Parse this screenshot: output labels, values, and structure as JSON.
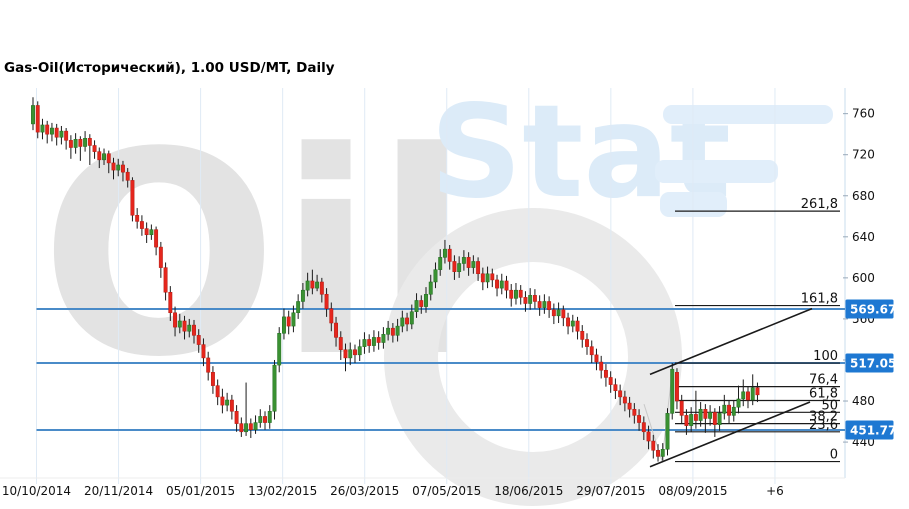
{
  "header": {
    "title": "Gas-Oil(Исторический), 1.00 USD/MT, Daily"
  },
  "watermark": {
    "word_left": "Oil",
    "word_right": "Stat"
  },
  "price_axis": {
    "ticks": [
      760,
      720,
      680,
      640,
      600,
      560,
      520,
      480,
      440
    ],
    "badges": [
      {
        "label": "569.67",
        "value": 569.67
      },
      {
        "label": "517.05",
        "value": 517.05
      },
      {
        "label": "451.77",
        "value": 451.77
      }
    ]
  },
  "time_axis": {
    "labels": [
      "10/10/2014",
      "20/11/2014",
      "05/01/2015",
      "13/02/2015",
      "26/03/2015",
      "07/05/2015",
      "18/06/2015",
      "29/07/2015",
      "08/09/2015",
      "+6"
    ]
  },
  "colors": {
    "up": "#3a9132",
    "up_border": "#1f6b1f",
    "down": "#e5261d",
    "down_border": "#b21b13",
    "wick": "#1a1a1a",
    "level_line": "#4a8bc8",
    "badge": "#1e78d2",
    "fib_line": "#1a1a1a",
    "grid": "#dfeaf5",
    "axis_line": "#c9dcee",
    "zigzag": "#c8c8c8",
    "watermark_ring": "#eaeaea",
    "watermark_bar": "#e1eefa"
  },
  "chart_data": {
    "type": "candlestick",
    "title": "Gas-Oil(Исторический), 1.00 USD/MT, Daily",
    "ylabel": "USD/MT",
    "ylim": [
      405,
      785
    ],
    "grid": "vertical",
    "legend": "none",
    "x_tick_labels": [
      "10/10/2014",
      "20/11/2014",
      "05/01/2015",
      "13/02/2015",
      "26/03/2015",
      "07/05/2015",
      "18/06/2015",
      "29/07/2015",
      "08/09/2015",
      "+6"
    ],
    "y_ticks": [
      760,
      720,
      680,
      640,
      600,
      560,
      520,
      480,
      440
    ],
    "horizontal_levels": [
      569.67,
      517.05,
      451.77
    ],
    "fib_levels": [
      {
        "label": "261,8",
        "price": 665
      },
      {
        "label": "161,8",
        "price": 573
      },
      {
        "label": "100",
        "price": 517
      },
      {
        "label": "76,4",
        "price": 494
      },
      {
        "label": "61,8",
        "price": 480.5
      },
      {
        "label": "50",
        "price": 469
      },
      {
        "label": "38,2",
        "price": 458
      },
      {
        "label": "23,6",
        "price": 450
      },
      {
        "label": "0",
        "price": 421
      }
    ],
    "trend_channel": {
      "upper": [
        [
          650,
          506
        ],
        [
          812,
          570
        ]
      ],
      "lower": [
        [
          650,
          416
        ],
        [
          810,
          479
        ]
      ]
    },
    "zigzag": [
      [
        644,
        477
      ],
      [
        662,
        421.5
      ],
      [
        673,
        516
      ]
    ],
    "candles_ohlc": [
      [
        750,
        776,
        744,
        768
      ],
      [
        768,
        772,
        736,
        742
      ],
      [
        742,
        755,
        735,
        749
      ],
      [
        749,
        753,
        731,
        740
      ],
      [
        740,
        751,
        733,
        746
      ],
      [
        746,
        750,
        729,
        737
      ],
      [
        737,
        748,
        730,
        743
      ],
      [
        743,
        746,
        725,
        734
      ],
      [
        734,
        739,
        716,
        727
      ],
      [
        727,
        741,
        721,
        735
      ],
      [
        735,
        738,
        714,
        728
      ],
      [
        728,
        743,
        723,
        736
      ],
      [
        736,
        740,
        710,
        729
      ],
      [
        729,
        734,
        716,
        723
      ],
      [
        723,
        727,
        707,
        715
      ],
      [
        715,
        726,
        710,
        721
      ],
      [
        721,
        724,
        702,
        712
      ],
      [
        712,
        717,
        696,
        705
      ],
      [
        705,
        716,
        699,
        710
      ],
      [
        710,
        714,
        694,
        703
      ],
      [
        703,
        707,
        688,
        695
      ],
      [
        695,
        698,
        655,
        661
      ],
      [
        661,
        668,
        648,
        655
      ],
      [
        655,
        661,
        641,
        648
      ],
      [
        648,
        654,
        634,
        642
      ],
      [
        642,
        652,
        637,
        647
      ],
      [
        647,
        650,
        622,
        630
      ],
      [
        630,
        635,
        600,
        610
      ],
      [
        610,
        615,
        578,
        586
      ],
      [
        586,
        592,
        558,
        566
      ],
      [
        566,
        572,
        543,
        552
      ],
      [
        552,
        565,
        546,
        558
      ],
      [
        558,
        563,
        540,
        548
      ],
      [
        548,
        560,
        542,
        554
      ],
      [
        554,
        559,
        536,
        544
      ],
      [
        544,
        550,
        527,
        535
      ],
      [
        535,
        541,
        514,
        522
      ],
      [
        522,
        528,
        500,
        508
      ],
      [
        508,
        514,
        487,
        495
      ],
      [
        495,
        501,
        476,
        484
      ],
      [
        484,
        492,
        468,
        476
      ],
      [
        476,
        488,
        470,
        481
      ],
      [
        481,
        486,
        462,
        470
      ],
      [
        470,
        476,
        450,
        458
      ],
      [
        458,
        464,
        445,
        450
      ],
      [
        450,
        498,
        446,
        458
      ],
      [
        458,
        463,
        444,
        452
      ],
      [
        452,
        466,
        448,
        459
      ],
      [
        459,
        472,
        454,
        465
      ],
      [
        465,
        470,
        452,
        459
      ],
      [
        459,
        476,
        453,
        470
      ],
      [
        470,
        520,
        462,
        515
      ],
      [
        515,
        552,
        508,
        546
      ],
      [
        546,
        570,
        540,
        562
      ],
      [
        562,
        568,
        545,
        553
      ],
      [
        553,
        573,
        547,
        566
      ],
      [
        566,
        584,
        560,
        577
      ],
      [
        577,
        595,
        570,
        588
      ],
      [
        588,
        605,
        582,
        597
      ],
      [
        597,
        608,
        584,
        590
      ],
      [
        590,
        603,
        587,
        596
      ],
      [
        596,
        600,
        576,
        584
      ],
      [
        584,
        590,
        562,
        570
      ],
      [
        570,
        576,
        548,
        556
      ],
      [
        556,
        562,
        533,
        542
      ],
      [
        542,
        548,
        520,
        530
      ],
      [
        530,
        536,
        509,
        522
      ],
      [
        522,
        537,
        515,
        530
      ],
      [
        530,
        535,
        517,
        525
      ],
      [
        525,
        540,
        519,
        533
      ],
      [
        533,
        547,
        526,
        540
      ],
      [
        540,
        545,
        527,
        534
      ],
      [
        534,
        549,
        528,
        542
      ],
      [
        542,
        548,
        530,
        537
      ],
      [
        537,
        552,
        531,
        545
      ],
      [
        545,
        558,
        539,
        551
      ],
      [
        551,
        556,
        537,
        544
      ],
      [
        544,
        560,
        538,
        553
      ],
      [
        553,
        568,
        547,
        561
      ],
      [
        561,
        566,
        548,
        555
      ],
      [
        555,
        574,
        550,
        567
      ],
      [
        567,
        585,
        561,
        578
      ],
      [
        578,
        583,
        565,
        572
      ],
      [
        572,
        591,
        566,
        584
      ],
      [
        584,
        603,
        578,
        596
      ],
      [
        596,
        615,
        590,
        608
      ],
      [
        608,
        628,
        602,
        620
      ],
      [
        620,
        637,
        614,
        628
      ],
      [
        628,
        632,
        608,
        616
      ],
      [
        616,
        622,
        598,
        606
      ],
      [
        606,
        621,
        600,
        614
      ],
      [
        614,
        627,
        607,
        620
      ],
      [
        620,
        625,
        602,
        610
      ],
      [
        610,
        622,
        604,
        616
      ],
      [
        616,
        620,
        597,
        604
      ],
      [
        604,
        610,
        588,
        596
      ],
      [
        596,
        611,
        590,
        604
      ],
      [
        604,
        609,
        591,
        598
      ],
      [
        598,
        603,
        582,
        590
      ],
      [
        590,
        604,
        584,
        597
      ],
      [
        597,
        602,
        580,
        588
      ],
      [
        588,
        594,
        572,
        580
      ],
      [
        580,
        595,
        574,
        588
      ],
      [
        588,
        593,
        574,
        581
      ],
      [
        581,
        587,
        567,
        575
      ],
      [
        575,
        590,
        569,
        583
      ],
      [
        583,
        589,
        570,
        577
      ],
      [
        577,
        583,
        563,
        571
      ],
      [
        571,
        584,
        565,
        577
      ],
      [
        577,
        582,
        561,
        569
      ],
      [
        569,
        575,
        555,
        563
      ],
      [
        563,
        576,
        556,
        569
      ],
      [
        569,
        573,
        553,
        561
      ],
      [
        561,
        566,
        545,
        553
      ],
      [
        553,
        564,
        547,
        558
      ],
      [
        558,
        562,
        540,
        548
      ],
      [
        548,
        554,
        532,
        540
      ],
      [
        540,
        546,
        525,
        533
      ],
      [
        533,
        539,
        517,
        525
      ],
      [
        525,
        531,
        510,
        518
      ],
      [
        518,
        524,
        502,
        510
      ],
      [
        510,
        516,
        494,
        503
      ],
      [
        503,
        509,
        488,
        496
      ],
      [
        496,
        502,
        482,
        490
      ],
      [
        490,
        496,
        476,
        484
      ],
      [
        484,
        490,
        470,
        478
      ],
      [
        478,
        484,
        464,
        472
      ],
      [
        472,
        478,
        458,
        466
      ],
      [
        466,
        472,
        451,
        459
      ],
      [
        459,
        465,
        442,
        450
      ],
      [
        450,
        456,
        433,
        441
      ],
      [
        441,
        447,
        424,
        432
      ],
      [
        432,
        438,
        421,
        426
      ],
      [
        426,
        439,
        422,
        433
      ],
      [
        433,
        473,
        427,
        468
      ],
      [
        468,
        517,
        462,
        511
      ],
      [
        508,
        512,
        472,
        480
      ],
      [
        480,
        486,
        458,
        466
      ],
      [
        466,
        472,
        447,
        456
      ],
      [
        456,
        474,
        450,
        467
      ],
      [
        467,
        490,
        453,
        461
      ],
      [
        461,
        479,
        455,
        472
      ],
      [
        472,
        477,
        449,
        463
      ],
      [
        463,
        476,
        456,
        469
      ],
      [
        469,
        473,
        445,
        457
      ],
      [
        457,
        475,
        451,
        468
      ],
      [
        468,
        486,
        462,
        476
      ],
      [
        476,
        481,
        458,
        466
      ],
      [
        466,
        480,
        460,
        474
      ],
      [
        474,
        495,
        468,
        482
      ],
      [
        482,
        501,
        475,
        489
      ],
      [
        489,
        494,
        473,
        481
      ],
      [
        481,
        506,
        476,
        493
      ],
      [
        493,
        498,
        479,
        486
      ]
    ]
  }
}
